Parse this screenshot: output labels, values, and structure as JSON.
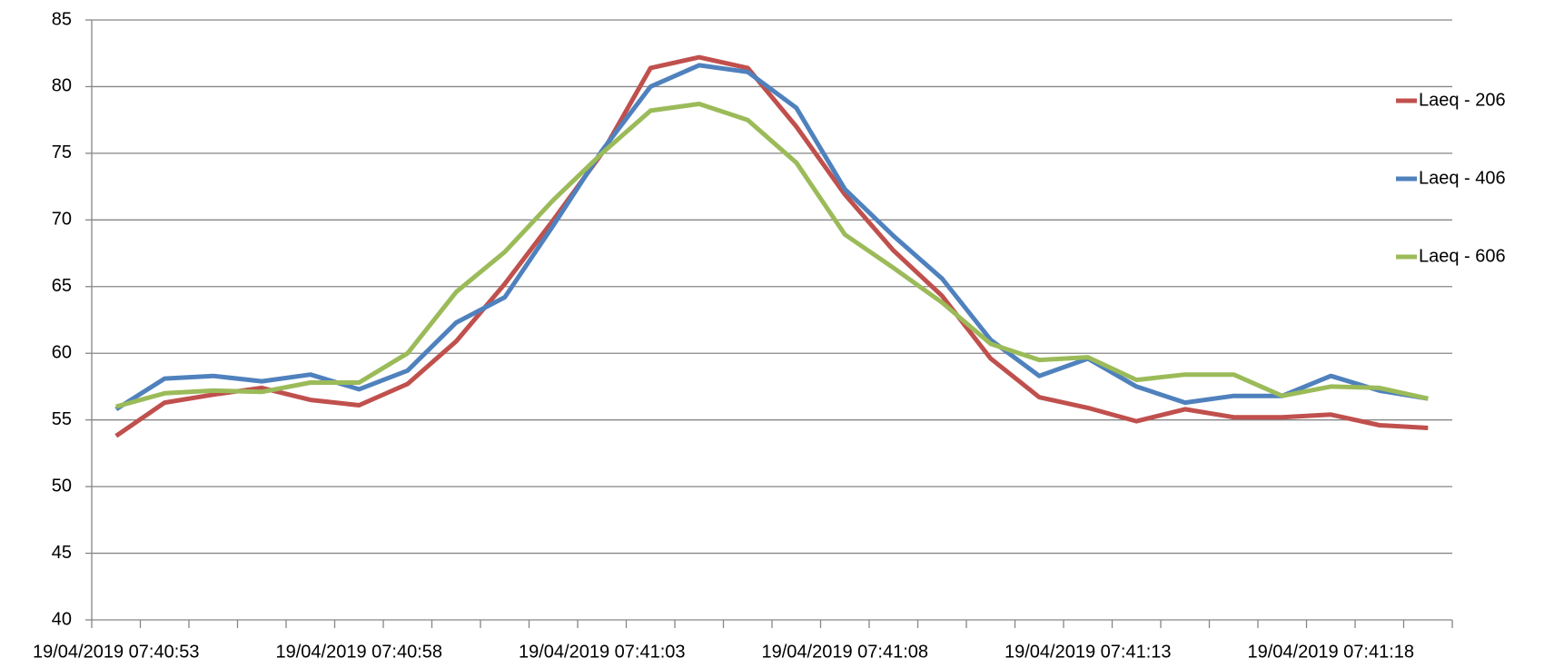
{
  "chart_data": {
    "type": "line",
    "categories": [
      "19/04/2019 07:40:53",
      null,
      null,
      null,
      null,
      "19/04/2019 07:40:58",
      null,
      null,
      null,
      null,
      "19/04/2019 07:41:03",
      null,
      null,
      null,
      null,
      "19/04/2019 07:41:08",
      null,
      null,
      null,
      null,
      "19/04/2019 07:41:13",
      null,
      null,
      null,
      null,
      "19/04/2019 07:41:18",
      null,
      null
    ],
    "series": [
      {
        "name": "Laeq - 206",
        "color": "#c0504d",
        "values": [
          53.8,
          56.3,
          56.9,
          57.4,
          56.5,
          56.1,
          57.7,
          60.9,
          65.2,
          70.0,
          75.0,
          81.4,
          82.2,
          81.4,
          77.0,
          71.9,
          67.7,
          64.3,
          59.6,
          56.7,
          55.9,
          54.9,
          55.8,
          55.2,
          55.2,
          55.4,
          54.6,
          54.4
        ]
      },
      {
        "name": "Laeq - 406",
        "color": "#4f81bd",
        "values": [
          55.8,
          58.1,
          58.3,
          57.9,
          58.4,
          57.3,
          58.7,
          62.3,
          64.2,
          69.6,
          75.2,
          80.0,
          81.6,
          81.1,
          78.4,
          72.3,
          68.8,
          65.6,
          61.0,
          58.3,
          59.6,
          57.5,
          56.3,
          56.8,
          56.8,
          58.3,
          57.2,
          56.6
        ]
      },
      {
        "name": "Laeq - 606",
        "color": "#9bbb59",
        "values": [
          56.0,
          57.0,
          57.2,
          57.1,
          57.8,
          57.8,
          60.0,
          64.6,
          67.6,
          71.5,
          75.0,
          78.2,
          78.7,
          77.5,
          74.3,
          68.9,
          66.4,
          63.8,
          60.7,
          59.5,
          59.7,
          58.0,
          58.4,
          58.4,
          56.8,
          57.5,
          57.4,
          56.6
        ]
      }
    ],
    "ylim": [
      40,
      85
    ],
    "yticks": [
      40,
      45,
      50,
      55,
      60,
      65,
      70,
      75,
      80,
      85
    ],
    "grid": true,
    "legend": "right"
  }
}
